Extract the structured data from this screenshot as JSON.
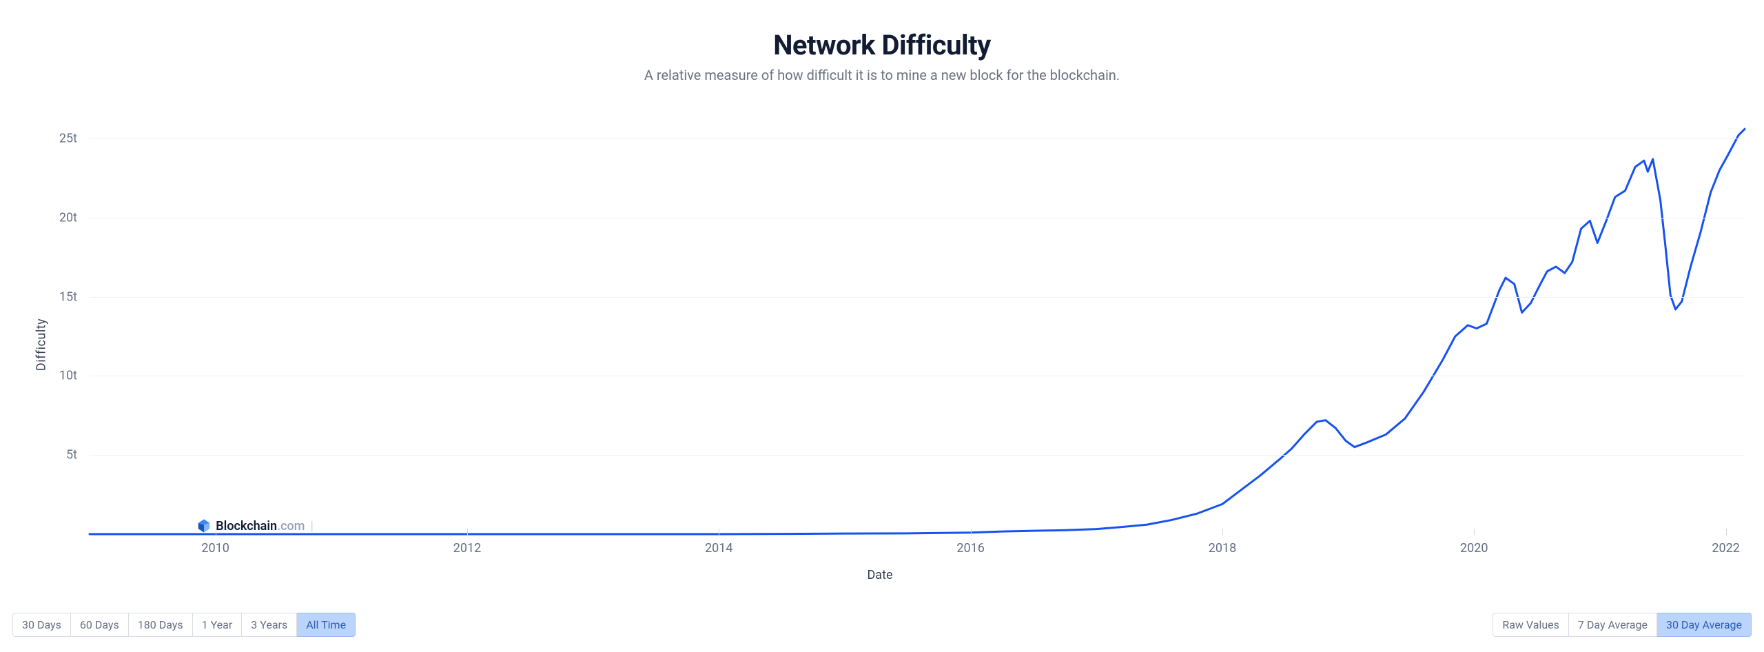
{
  "header": {
    "title": "Network Difficulty",
    "subtitle": "A relative measure of how difficult it is to mine a new block for the blockchain."
  },
  "chart": {
    "type": "line",
    "x_axis": {
      "title": "Date",
      "domain_years": [
        2009,
        2022.15
      ],
      "ticks": [
        2010,
        2012,
        2014,
        2016,
        2018,
        2020,
        2022
      ],
      "tick_labels": [
        "2010",
        "2012",
        "2014",
        "2016",
        "2018",
        "2020",
        "2022"
      ]
    },
    "y_axis": {
      "title": "Difficulty",
      "domain": [
        0,
        27
      ],
      "ticks": [
        5,
        10,
        15,
        20,
        25
      ],
      "tick_labels": [
        "5t",
        "10t",
        "15t",
        "20t",
        "25t"
      ]
    },
    "grid_color": "#f1f2f4",
    "background_color": "#ffffff",
    "line_color": "#1652F0",
    "line_width": 3,
    "series": [
      [
        2009.0,
        0.0
      ],
      [
        2010.0,
        0.0
      ],
      [
        2011.0,
        0.0
      ],
      [
        2012.0,
        0.0
      ],
      [
        2013.0,
        0.0
      ],
      [
        2013.5,
        0.0
      ],
      [
        2014.0,
        0.002
      ],
      [
        2014.5,
        0.015
      ],
      [
        2015.0,
        0.04
      ],
      [
        2015.5,
        0.05
      ],
      [
        2016.0,
        0.1
      ],
      [
        2016.25,
        0.17
      ],
      [
        2016.5,
        0.21
      ],
      [
        2016.75,
        0.25
      ],
      [
        2017.0,
        0.32
      ],
      [
        2017.2,
        0.45
      ],
      [
        2017.4,
        0.6
      ],
      [
        2017.6,
        0.9
      ],
      [
        2017.8,
        1.3
      ],
      [
        2018.0,
        1.9
      ],
      [
        2018.15,
        2.8
      ],
      [
        2018.3,
        3.7
      ],
      [
        2018.45,
        4.7
      ],
      [
        2018.55,
        5.4
      ],
      [
        2018.65,
        6.3
      ],
      [
        2018.75,
        7.1
      ],
      [
        2018.82,
        7.2
      ],
      [
        2018.9,
        6.7
      ],
      [
        2018.98,
        5.9
      ],
      [
        2019.05,
        5.5
      ],
      [
        2019.15,
        5.8
      ],
      [
        2019.3,
        6.3
      ],
      [
        2019.45,
        7.3
      ],
      [
        2019.6,
        9.0
      ],
      [
        2019.75,
        11.0
      ],
      [
        2019.85,
        12.5
      ],
      [
        2019.95,
        13.2
      ],
      [
        2020.02,
        13.0
      ],
      [
        2020.1,
        13.3
      ],
      [
        2020.2,
        15.4
      ],
      [
        2020.25,
        16.2
      ],
      [
        2020.32,
        15.8
      ],
      [
        2020.38,
        14.0
      ],
      [
        2020.45,
        14.6
      ],
      [
        2020.52,
        15.7
      ],
      [
        2020.58,
        16.6
      ],
      [
        2020.65,
        16.9
      ],
      [
        2020.72,
        16.5
      ],
      [
        2020.78,
        17.2
      ],
      [
        2020.85,
        19.3
      ],
      [
        2020.92,
        19.8
      ],
      [
        2020.98,
        18.4
      ],
      [
        2021.05,
        19.8
      ],
      [
        2021.12,
        21.3
      ],
      [
        2021.2,
        21.7
      ],
      [
        2021.28,
        23.2
      ],
      [
        2021.35,
        23.6
      ],
      [
        2021.38,
        22.9
      ],
      [
        2021.42,
        23.7
      ],
      [
        2021.48,
        21.1
      ],
      [
        2021.52,
        18.2
      ],
      [
        2021.56,
        15.1
      ],
      [
        2021.6,
        14.2
      ],
      [
        2021.65,
        14.7
      ],
      [
        2021.72,
        16.9
      ],
      [
        2021.8,
        19.1
      ],
      [
        2021.88,
        21.6
      ],
      [
        2021.95,
        23.0
      ],
      [
        2022.02,
        24.0
      ],
      [
        2022.1,
        25.2
      ],
      [
        2022.15,
        25.6
      ]
    ]
  },
  "watermark": {
    "brand": "Blockchain",
    "suffix": ".com",
    "x_year": 2009.85,
    "y_value": 1.0,
    "logo_colors": {
      "a": "#3D89F5",
      "b": "#1656B9",
      "c": "#85B5F8"
    }
  },
  "controls": {
    "range": {
      "options": [
        "30 Days",
        "60 Days",
        "180 Days",
        "1 Year",
        "3 Years",
        "All Time"
      ],
      "active_index": 5
    },
    "smoothing": {
      "options": [
        "Raw Values",
        "7 Day Average",
        "30 Day Average"
      ],
      "active_index": 2
    }
  },
  "colors": {
    "title": "#121d33",
    "subtitle": "#6b7280",
    "tick_label": "#656f82",
    "btn_border": "#d9dde3",
    "btn_active_bg": "#bbd4fb",
    "btn_active_fg": "#2a5fb8"
  }
}
